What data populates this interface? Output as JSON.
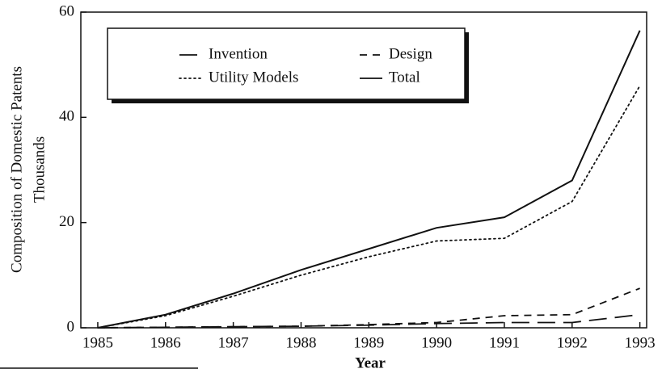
{
  "chart_data": {
    "type": "line",
    "x_label": "Year",
    "y_label": [
      "Composition of Domestic Patents",
      "Thousands"
    ],
    "x": [
      1985,
      1986,
      1987,
      1988,
      1989,
      1990,
      1991,
      1992,
      1993
    ],
    "series": [
      {
        "name": "Invention",
        "color": "#111111",
        "dash": "long-dash",
        "values": [
          0,
          0.1,
          0.2,
          0.3,
          0.5,
          0.8,
          1,
          1,
          2.5
        ]
      },
      {
        "name": "Design",
        "color": "#111111",
        "dash": "dash",
        "values": [
          0,
          0.1,
          0.2,
          0.3,
          0.6,
          1,
          2.3,
          2.5,
          7.5
        ]
      },
      {
        "name": "Utility Models",
        "color": "#111111",
        "dash": "dot",
        "values": [
          0,
          2.3,
          6,
          10,
          13.5,
          16.5,
          17,
          24,
          46
        ]
      },
      {
        "name": "Total",
        "color": "#111111",
        "dash": "solid",
        "values": [
          0,
          2.5,
          6.5,
          11,
          15,
          19,
          21,
          28,
          56.5
        ]
      }
    ],
    "xlim": [
      1984.75,
      1993.1
    ],
    "xticks": [
      1985,
      1986,
      1987,
      1988,
      1989,
      1990,
      1991,
      1992,
      1993
    ],
    "ylim": [
      0,
      60
    ],
    "yticks": [
      0,
      20,
      40,
      60
    ],
    "grid": false,
    "legend": "top-left"
  }
}
